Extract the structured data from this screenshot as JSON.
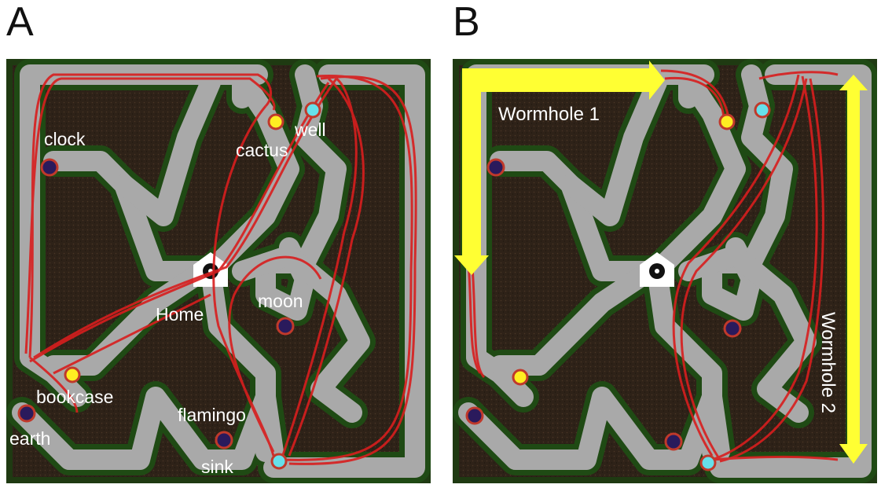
{
  "panels": [
    {
      "letter": "A",
      "labels": {
        "clock": "clock",
        "cactus": "cactus",
        "well": "well",
        "home": "Home",
        "moon": "moon",
        "bookcase": "bookcase",
        "flamingo": "flamingo",
        "earth": "earth",
        "sink": "sink"
      }
    },
    {
      "letter": "B",
      "labels": {
        "wormhole1": "Wormhole 1",
        "wormhole2": "Wormhole 2"
      }
    }
  ],
  "colors": {
    "hedge": "#1f3a12",
    "ground": "#2e2218",
    "path": "#a9a9a9",
    "trajectory": "#d81e1e",
    "arrow": "#ffff33",
    "landmark_navy": "#2a1a5c",
    "landmark_yellow": "#ffee22",
    "landmark_cyan": "#66e0ea"
  }
}
